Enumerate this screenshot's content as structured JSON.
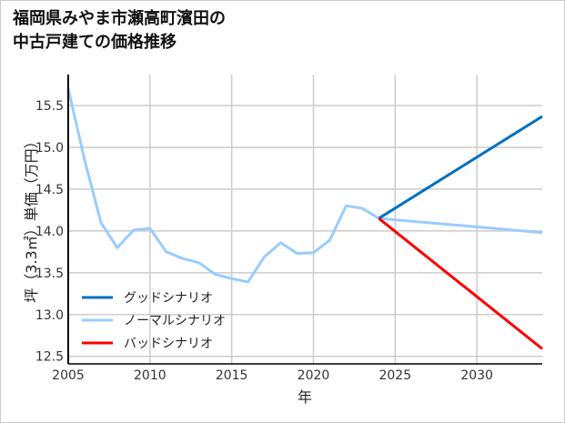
{
  "chart_data": {
    "type": "line",
    "title_lines": [
      "福岡県みやま市瀬高町濱田の",
      "中古戸建ての価格推移"
    ],
    "xlabel": "年",
    "ylabel": "坪（3.3㎡）単価（万円）",
    "xlim": [
      2005,
      2034
    ],
    "ylim": [
      12.41,
      15.87
    ],
    "xticks": [
      2005,
      2010,
      2015,
      2020,
      2025,
      2030
    ],
    "yticks": [
      12.5,
      13.0,
      13.5,
      14.0,
      14.5,
      15.0,
      15.5
    ],
    "ytick_labels": [
      "12.5",
      "13.0",
      "13.5",
      "14.0",
      "14.5",
      "15.0",
      "15.5"
    ],
    "grid": true,
    "legend_position": "bottom-left",
    "series": [
      {
        "name": "グッドシナリオ",
        "color": "#0070C0",
        "x": [
          2024,
          2034
        ],
        "y": [
          14.15,
          15.37
        ]
      },
      {
        "name": "ノーマルシナリオ",
        "color": "#99CCFF",
        "x": [
          2005,
          2006,
          2007,
          2008,
          2009,
          2010,
          2011,
          2012,
          2013,
          2014,
          2015,
          2016,
          2017,
          2018,
          2019,
          2020,
          2021,
          2022,
          2023,
          2024,
          2034
        ],
        "y": [
          15.7,
          14.85,
          14.1,
          13.8,
          14.01,
          14.03,
          13.75,
          13.67,
          13.62,
          13.48,
          13.43,
          13.39,
          13.69,
          13.86,
          13.73,
          13.74,
          13.89,
          14.3,
          14.27,
          14.15,
          13.98
        ]
      },
      {
        "name": "バッドシナリオ",
        "color": "#FF0000",
        "x": [
          2024,
          2034
        ],
        "y": [
          14.15,
          12.59
        ]
      }
    ]
  }
}
